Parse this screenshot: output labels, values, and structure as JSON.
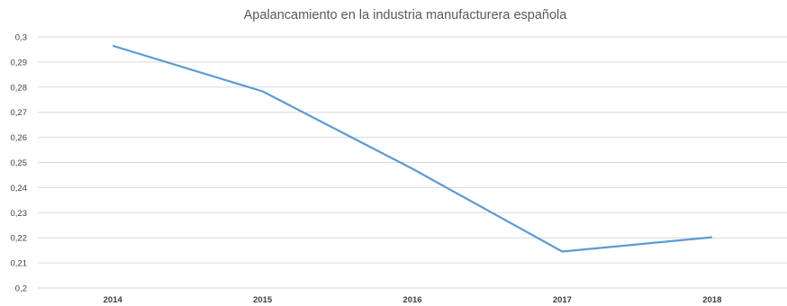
{
  "chart_data": {
    "type": "line",
    "title": "Apalancamiento en la industria manufacturera española",
    "xlabel": "",
    "ylabel": "",
    "categories": [
      "2014",
      "2015",
      "2016",
      "2017",
      "2018"
    ],
    "series": [
      {
        "values": [
          0.2965,
          0.2783,
          0.2475,
          0.2145,
          0.2202
        ]
      }
    ],
    "ylim": [
      0.2,
      0.3
    ],
    "y_ticks": [
      "0,2",
      "0,21",
      "0,22",
      "0,23",
      "0,24",
      "0,25",
      "0,26",
      "0,27",
      "0,28",
      "0,29",
      "0,3"
    ],
    "grid": true,
    "legend": "none",
    "line_color": "#5b9bd5",
    "grid_color": "#d9d9d9"
  }
}
